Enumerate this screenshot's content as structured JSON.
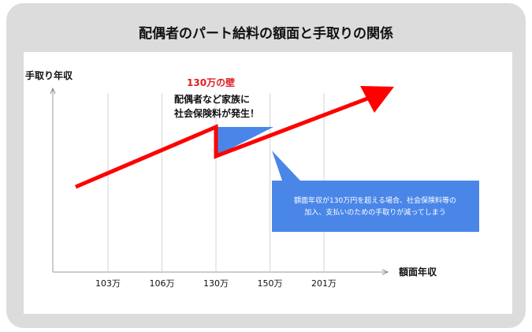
{
  "title": "配偶者のパート給料の額面と手取りの関係",
  "chart_data": {
    "type": "line",
    "ylabel": "手取り年収",
    "xlabel": "額面年収",
    "categories": [
      "103万",
      "106万",
      "130万",
      "150万",
      "201万"
    ],
    "series": [
      {
        "x": [
          "103万",
          "130万",
          "130万",
          "201万"
        ]
      }
    ],
    "annotations": {
      "wall_label": "130万の壁",
      "event_text": [
        "配偶者など家族に",
        "社会保険料が発生！"
      ],
      "callout_text": [
        "額面年収が130万円を超える場合、社会保険料等の",
        "加入、支払いのための手取りが減ってしまう"
      ]
    },
    "grid": "vertical",
    "colors": {
      "line": "#ff0000",
      "drop_area": "#4a86e8",
      "callout": "#4a86e8",
      "wall_label": "#e02020"
    }
  }
}
